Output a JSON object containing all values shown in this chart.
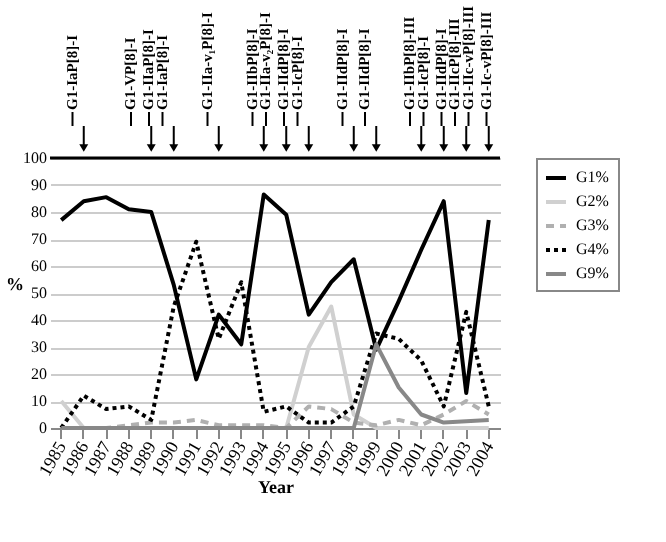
{
  "chart_data": {
    "type": "line",
    "xlabel": "Year",
    "ylabel": "%",
    "categories": [
      "1985",
      "1986",
      "1987",
      "1988",
      "1989",
      "1990",
      "1991",
      "1992",
      "1993",
      "1994",
      "1995",
      "1996",
      "1997",
      "1998",
      "1999",
      "2000",
      "2001",
      "2002",
      "2003",
      "2004"
    ],
    "series": [
      {
        "name": "G1%",
        "color": "#000000",
        "line_style": "solid",
        "values": [
          77,
          84,
          85.5,
          81,
          80,
          53,
          18,
          42,
          31,
          86.5,
          79,
          42,
          54,
          62.5,
          29,
          47,
          66,
          84,
          13,
          77
        ]
      },
      {
        "name": "G2%",
        "color": "#d0d0d0",
        "line_style": "solid",
        "values": [
          10,
          0,
          0,
          0,
          0,
          0,
          0,
          0,
          0,
          0,
          0,
          30,
          45,
          5,
          0,
          0,
          0,
          0,
          0,
          0
        ]
      },
      {
        "name": "G3%",
        "color": "#b0b0b0",
        "line_style": "dashed",
        "values": [
          0,
          0,
          0,
          1,
          2,
          2,
          3,
          1,
          1,
          1,
          0,
          8,
          7,
          2,
          1,
          3,
          1,
          5,
          10,
          5
        ]
      },
      {
        "name": "G4%",
        "color": "#000000",
        "line_style": "dotted",
        "values": [
          0,
          12,
          7,
          8,
          3,
          45,
          69,
          33,
          54,
          6,
          8,
          2,
          2,
          8,
          35,
          33,
          25,
          8,
          43,
          8
        ]
      },
      {
        "name": "G9%",
        "color": "#888888",
        "line_style": "solid",
        "values": [
          0,
          0,
          0,
          0,
          0,
          0,
          0,
          0,
          0,
          0,
          0,
          0,
          0,
          0,
          31,
          15,
          5,
          2,
          2.5,
          3
        ]
      }
    ],
    "ylim": [
      0,
      100
    ],
    "yticks": [
      0,
      10,
      20,
      30,
      40,
      50,
      60,
      70,
      80,
      90,
      100
    ],
    "grid": "y",
    "legend": "right",
    "marker": "none",
    "ref_lines": [
      {
        "axis": "x",
        "value": "1986",
        "label": "G1-IaP[8]-I"
      },
      {
        "axis": "x",
        "value": "1989",
        "label": "G1-VP[8]-I"
      },
      {
        "axis": "x",
        "value": "1989",
        "label": "G1-IIaP[8]-I"
      },
      {
        "axis": "x",
        "value": "1990",
        "label": "G1-IaP[8]-I"
      },
      {
        "axis": "x",
        "value": "1992",
        "label": "G1-IIa-v₁P[8]-I"
      },
      {
        "axis": "x",
        "value": "1994",
        "label": "G1-IIbP[8]-I"
      },
      {
        "axis": "x",
        "value": "1995",
        "label": "G1-IIa-v₂P[8]-I"
      },
      {
        "axis": "x",
        "value": "1995",
        "label": "G1-IIdP[8]-I"
      },
      {
        "axis": "x",
        "value": "1996",
        "label": "G1-IcP[8]-I"
      },
      {
        "axis": "x",
        "value": "1998",
        "label": "G1-IIdP[8]-I"
      },
      {
        "axis": "x",
        "value": "1999",
        "label": "G1-IIdP[8]-I"
      },
      {
        "axis": "x",
        "value": "2001",
        "label": "G1-IIbP[8]-III"
      },
      {
        "axis": "x",
        "value": "2002",
        "label": "G1-IcP[8]-I"
      },
      {
        "axis": "x",
        "value": "2002",
        "label": "G1-IIdP[8]-I"
      },
      {
        "axis": "x",
        "value": "2003",
        "label": "G1-IIcP[8]-III"
      },
      {
        "axis": "x",
        "value": "2004",
        "label": "G1-IIc-vP[8]-III"
      },
      {
        "axis": "x",
        "value": "2004",
        "label": "G1-Ic-vP[8]-III"
      }
    ]
  }
}
